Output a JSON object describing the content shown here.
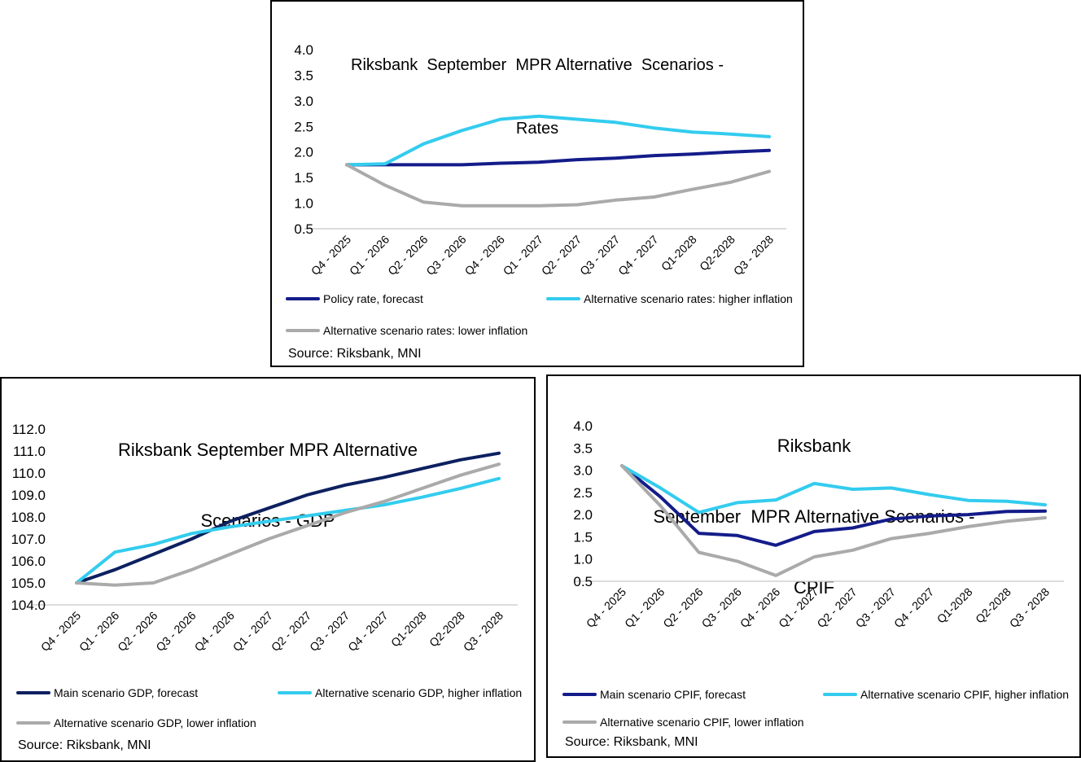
{
  "colors": {
    "main_rates": "#141c8a",
    "main_gdp": "#0d2060",
    "main_cpif": "#141c8a",
    "higher": "#33ccee",
    "lower": "#aaaaaa",
    "axis": "#d0d0d0"
  },
  "chart_data": [
    {
      "type": "line",
      "title_lines": [
        "Riksbank  September  MPR Alternative  Scenarios -",
        "Rates"
      ],
      "categories": [
        "Q4 - 2025",
        "Q1 - 2026",
        "Q2 - 2026",
        "Q3 - 2026",
        "Q4 - 2026",
        "Q1 - 2027",
        "Q2 - 2027",
        "Q3 - 2027",
        "Q4 - 2027",
        "Q1-2028",
        "Q2-2028",
        "Q3 - 2028"
      ],
      "ylim": [
        0.5,
        4.0
      ],
      "yticks": [
        "0.5",
        "1.0",
        "1.5",
        "2.0",
        "2.5",
        "3.0",
        "3.5",
        "4.0"
      ],
      "grid": false,
      "legend": "bottom",
      "series": [
        {
          "name": "Policy rate, forecast",
          "color_key": "main_rates",
          "values": [
            1.75,
            1.75,
            1.75,
            1.75,
            1.78,
            1.8,
            1.85,
            1.88,
            1.93,
            1.96,
            2.0,
            2.03
          ]
        },
        {
          "name": "Alternative scenario rates: higher inflation",
          "color_key": "higher",
          "values": [
            1.75,
            1.77,
            2.16,
            2.42,
            2.64,
            2.7,
            2.64,
            2.58,
            2.47,
            2.39,
            2.35,
            2.3
          ]
        },
        {
          "name": "Alternative scenario rates: lower inflation",
          "color_key": "lower",
          "values": [
            1.75,
            1.35,
            1.02,
            0.95,
            0.95,
            0.95,
            0.97,
            1.06,
            1.12,
            1.27,
            1.41,
            1.62
          ]
        }
      ],
      "source": "Source: Riksbank, MNI"
    },
    {
      "type": "line",
      "title_lines": [
        "Riksbank September MPR Alternative",
        "Scenarios - GDP"
      ],
      "categories": [
        "Q4 - 2025",
        "Q1 - 2026",
        "Q2 - 2026",
        "Q3 - 2026",
        "Q4 - 2026",
        "Q1 - 2027",
        "Q2 - 2027",
        "Q3 - 2027",
        "Q4 - 2027",
        "Q1-2028",
        "Q2-2028",
        "Q3 - 2028"
      ],
      "ylim": [
        104.0,
        112.0
      ],
      "yticks": [
        "104.0",
        "105.0",
        "106.0",
        "107.0",
        "108.0",
        "109.0",
        "110.0",
        "111.0",
        "112.0"
      ],
      "grid": false,
      "legend": "bottom",
      "series": [
        {
          "name": "Main scenario GDP, forecast",
          "color_key": "main_gdp",
          "values": [
            105.0,
            105.6,
            106.3,
            107.0,
            107.8,
            108.4,
            109.0,
            109.45,
            109.8,
            110.2,
            110.6,
            110.9
          ]
        },
        {
          "name": "Alternative scenario GDP, higher inflation",
          "color_key": "higher",
          "values": [
            105.0,
            106.4,
            106.75,
            107.25,
            107.55,
            107.8,
            108.05,
            108.3,
            108.55,
            108.9,
            109.3,
            109.75
          ]
        },
        {
          "name": "Alternative scenario GDP, lower inflation",
          "color_key": "lower",
          "values": [
            105.0,
            104.9,
            105.0,
            105.6,
            106.3,
            107.0,
            107.6,
            108.2,
            108.7,
            109.3,
            109.9,
            110.4
          ]
        }
      ],
      "source": "Source: Riksbank, MNI"
    },
    {
      "type": "line",
      "title_lines": [
        "Riksbank",
        "September  MPR Alternative Scenarios -",
        "CPIF"
      ],
      "categories": [
        "Q4 - 2025",
        "Q1 - 2026",
        "Q2 - 2026",
        "Q3 - 2026",
        "Q4 - 2026",
        "Q1 - 2027",
        "Q2 - 2027",
        "Q3 - 2027",
        "Q4 - 2027",
        "Q1-2028",
        "Q2-2028",
        "Q3 - 2028"
      ],
      "ylim": [
        0.5,
        4.0
      ],
      "yticks": [
        "0.5",
        "1.0",
        "1.5",
        "2.0",
        "2.5",
        "3.0",
        "3.5",
        "4.0"
      ],
      "grid": false,
      "legend": "bottom",
      "series": [
        {
          "name": "Main scenario CPIF, forecast",
          "color_key": "main_cpif",
          "values": [
            3.1,
            2.4,
            1.58,
            1.53,
            1.31,
            1.62,
            1.7,
            1.9,
            1.97,
            2.0,
            2.07,
            2.08
          ]
        },
        {
          "name": "Alternative scenario CPIF, higher inflation",
          "color_key": "higher",
          "values": [
            3.1,
            2.6,
            2.05,
            2.27,
            2.33,
            2.7,
            2.57,
            2.6,
            2.45,
            2.32,
            2.3,
            2.22
          ]
        },
        {
          "name": "Alternative scenario CPIF, lower inflation",
          "color_key": "lower",
          "values": [
            3.1,
            2.2,
            1.15,
            0.95,
            0.63,
            1.05,
            1.2,
            1.46,
            1.58,
            1.73,
            1.85,
            1.93
          ]
        }
      ],
      "source": "Source: Riksbank, MNI"
    }
  ]
}
